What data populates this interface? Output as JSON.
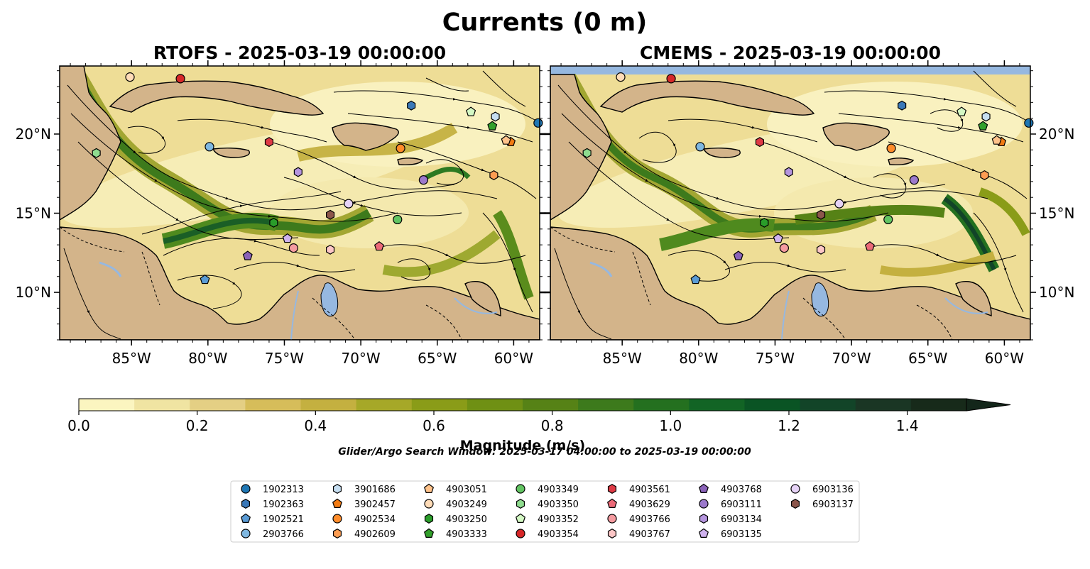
{
  "suptitle": "Currents (0 m)",
  "chart_data": [
    {
      "type": "heatmap",
      "title": "RTOFS - 2025-03-19 00:00:00",
      "x_ticks": [
        "85°W",
        "80°W",
        "75°W",
        "70°W",
        "65°W",
        "60°W"
      ],
      "y_ticks": [
        "10°N",
        "15°N",
        "20°N"
      ],
      "xlim": [
        -89.7,
        -58.3
      ],
      "ylim": [
        7,
        24.3
      ]
    },
    {
      "type": "heatmap",
      "title": "CMEMS - 2025-03-19 00:00:00",
      "x_ticks": [
        "85°W",
        "80°W",
        "75°W",
        "70°W",
        "65°W",
        "60°W"
      ],
      "y_ticks": [
        "10°N",
        "15°N",
        "20°N"
      ],
      "xlim": [
        -89.7,
        -58.3
      ],
      "ylim": [
        7,
        24.3
      ]
    }
  ],
  "colorbar": {
    "label": "Magnitude (m/s)",
    "range": [
      0,
      1.5
    ],
    "extend": "max",
    "ticks": [
      "0.0",
      "0.2",
      "0.4",
      "0.6",
      "0.8",
      "1.0",
      "1.2",
      "1.4"
    ],
    "colors": [
      "#fbf5c0",
      "#f0e4a2",
      "#e4cf84",
      "#d6bd5a",
      "#c4b040",
      "#a6a828",
      "#8a9c18",
      "#6f9014",
      "#568216",
      "#3d7a1c",
      "#24701f",
      "#126425",
      "#0a5424",
      "#124428",
      "#1a3624",
      "#172a1a"
    ],
    "over_color": "#13261a"
  },
  "search_window": "Glider/Argo Search Window: 2025-03-17 04:00:00 to 2025-03-19 00:00:00",
  "legend": {
    "placement": "bottom-center",
    "entries": [
      {
        "label": "1902313",
        "marker": "circle",
        "color": "#1f77b4"
      },
      {
        "label": "1902363",
        "marker": "hexagon",
        "color": "#3a78b8"
      },
      {
        "label": "1902521",
        "marker": "pentagon",
        "color": "#5a9bd5"
      },
      {
        "label": "2903766",
        "marker": "circle",
        "color": "#7fb7e0"
      },
      {
        "label": "3901686",
        "marker": "hexagon",
        "color": "#c6def1"
      },
      {
        "label": "3902457",
        "marker": "pentagon",
        "color": "#f27b13"
      },
      {
        "label": "4902534",
        "marker": "circle",
        "color": "#ff8c2a"
      },
      {
        "label": "4902609",
        "marker": "hexagon",
        "color": "#fd9d52"
      },
      {
        "label": "4903051",
        "marker": "pentagon",
        "color": "#ffc28a"
      },
      {
        "label": "4903249",
        "marker": "circle",
        "color": "#ffdcb8"
      },
      {
        "label": "4903250",
        "marker": "hexagon",
        "color": "#2a9d2a"
      },
      {
        "label": "4903333",
        "marker": "pentagon",
        "color": "#33a02c"
      },
      {
        "label": "4903349",
        "marker": "circle",
        "color": "#62c462"
      },
      {
        "label": "4903350",
        "marker": "hexagon",
        "color": "#8fdc8f"
      },
      {
        "label": "4903352",
        "marker": "pentagon",
        "color": "#d4f8c4"
      },
      {
        "label": "4903354",
        "marker": "circle",
        "color": "#d62728"
      },
      {
        "label": "4903561",
        "marker": "hexagon",
        "color": "#de3a45"
      },
      {
        "label": "4903629",
        "marker": "pentagon",
        "color": "#ec6a78"
      },
      {
        "label": "4903766",
        "marker": "circle",
        "color": "#f59ba0"
      },
      {
        "label": "4903767",
        "marker": "hexagon",
        "color": "#fcc6c6"
      },
      {
        "label": "4903768",
        "marker": "pentagon",
        "color": "#8a62b8"
      },
      {
        "label": "6903111",
        "marker": "circle",
        "color": "#9c79cc"
      },
      {
        "label": "6903134",
        "marker": "hexagon",
        "color": "#b595de"
      },
      {
        "label": "6903135",
        "marker": "pentagon",
        "color": "#cfb2ee"
      },
      {
        "label": "6903136",
        "marker": "circle",
        "color": "#e6d3f7"
      },
      {
        "label": "6903137",
        "marker": "hexagon",
        "color": "#8c564b"
      }
    ]
  },
  "floats": [
    {
      "id": "1902313",
      "lon": -58.4,
      "lat": 20.7
    },
    {
      "id": "1902363",
      "lon": -66.7,
      "lat": 21.8
    },
    {
      "id": "1902521",
      "lon": -80.2,
      "lat": 10.8
    },
    {
      "id": "2903766",
      "lon": -79.9,
      "lat": 19.2
    },
    {
      "id": "3901686",
      "lon": -61.2,
      "lat": 21.1
    },
    {
      "id": "3902457",
      "lon": -60.2,
      "lat": 19.5
    },
    {
      "id": "4902534",
      "lon": -67.4,
      "lat": 19.1
    },
    {
      "id": "4902609",
      "lon": -61.3,
      "lat": 17.4
    },
    {
      "id": "4903051",
      "lon": -60.5,
      "lat": 19.6
    },
    {
      "id": "4903249",
      "lon": -85.1,
      "lat": 23.6
    },
    {
      "id": "4903250",
      "lon": -75.7,
      "lat": 14.4
    },
    {
      "id": "4903333",
      "lon": -61.4,
      "lat": 20.5
    },
    {
      "id": "4903349",
      "lon": -67.6,
      "lat": 14.6
    },
    {
      "id": "4903350",
      "lon": -87.3,
      "lat": 18.8
    },
    {
      "id": "4903352",
      "lon": -62.8,
      "lat": 21.4
    },
    {
      "id": "4903354",
      "lon": -81.8,
      "lat": 23.5
    },
    {
      "id": "4903561",
      "lon": -76.0,
      "lat": 19.5
    },
    {
      "id": "4903629",
      "lon": -68.8,
      "lat": 12.9
    },
    {
      "id": "4903766",
      "lon": -74.4,
      "lat": 12.8
    },
    {
      "id": "4903767",
      "lon": -72.0,
      "lat": 12.7
    },
    {
      "id": "4903768",
      "lon": -77.4,
      "lat": 12.3
    },
    {
      "id": "6903111",
      "lon": -65.9,
      "lat": 17.1
    },
    {
      "id": "6903134",
      "lon": -74.1,
      "lat": 17.6
    },
    {
      "id": "6903135",
      "lon": -74.8,
      "lat": 13.4
    },
    {
      "id": "6903136",
      "lon": -70.8,
      "lat": 15.6
    },
    {
      "id": "6903137",
      "lon": -72.0,
      "lat": 14.9
    }
  ]
}
